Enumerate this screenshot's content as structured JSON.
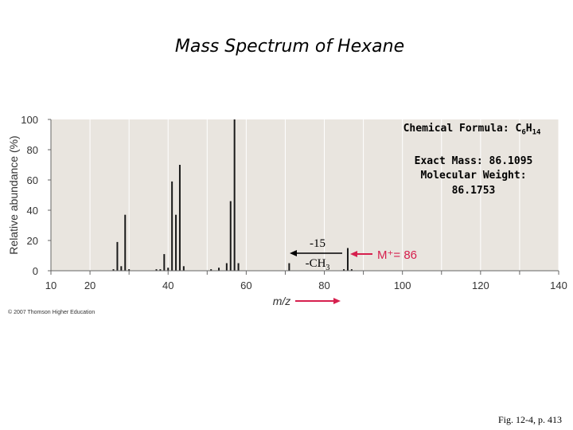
{
  "page": {
    "title": "Mass Spectrum of Hexane",
    "copyright": "© 2007 Thomson Higher Education",
    "caption": "Fig. 12-4, p. 413"
  },
  "annotations": {
    "formula_prefix": "Chemical Formula: ",
    "formula_c": "C",
    "formula_c_sub": "6",
    "formula_h": "H",
    "formula_h_sub": "14",
    "exact_mass": "Exact Mass: 86.1095",
    "molecular_weight_label": "Molecular Weight:",
    "molecular_weight_value": "86.1753",
    "loss_value": "-15",
    "loss_group_base": "-CH",
    "loss_group_sub": "3",
    "molecular_ion": "M⁺= 86"
  },
  "colors": {
    "plot_bg": "#e9e5df",
    "bar": "#1a1a1a",
    "accent": "#d6204e",
    "axis_text": "#333333"
  },
  "chart_data": {
    "type": "bar",
    "xlabel": "m/z",
    "ylabel": "Relative abundance (%)",
    "xlim": [
      10,
      140
    ],
    "ylim": [
      0,
      100
    ],
    "xticks": [
      10,
      20,
      30,
      40,
      50,
      60,
      70,
      80,
      90,
      100,
      110,
      120,
      130,
      140
    ],
    "xtick_labels": [
      "10",
      "20",
      "40",
      "60",
      "80",
      "100",
      "120",
      "140"
    ],
    "yticks": [
      0,
      20,
      40,
      60,
      80,
      100
    ],
    "grid": "vertical",
    "peaks": [
      {
        "mz": 26,
        "value": 1
      },
      {
        "mz": 27,
        "value": 19
      },
      {
        "mz": 28,
        "value": 3
      },
      {
        "mz": 29,
        "value": 37
      },
      {
        "mz": 30,
        "value": 1
      },
      {
        "mz": 37,
        "value": 1
      },
      {
        "mz": 38,
        "value": 1
      },
      {
        "mz": 39,
        "value": 11
      },
      {
        "mz": 40,
        "value": 2
      },
      {
        "mz": 41,
        "value": 59
      },
      {
        "mz": 42,
        "value": 37
      },
      {
        "mz": 43,
        "value": 70
      },
      {
        "mz": 44,
        "value": 3
      },
      {
        "mz": 51,
        "value": 1
      },
      {
        "mz": 53,
        "value": 2
      },
      {
        "mz": 55,
        "value": 5
      },
      {
        "mz": 56,
        "value": 46
      },
      {
        "mz": 57,
        "value": 100
      },
      {
        "mz": 58,
        "value": 5
      },
      {
        "mz": 71,
        "value": 5
      },
      {
        "mz": 85,
        "value": 1
      },
      {
        "mz": 86,
        "value": 15
      },
      {
        "mz": 87,
        "value": 1
      }
    ]
  }
}
